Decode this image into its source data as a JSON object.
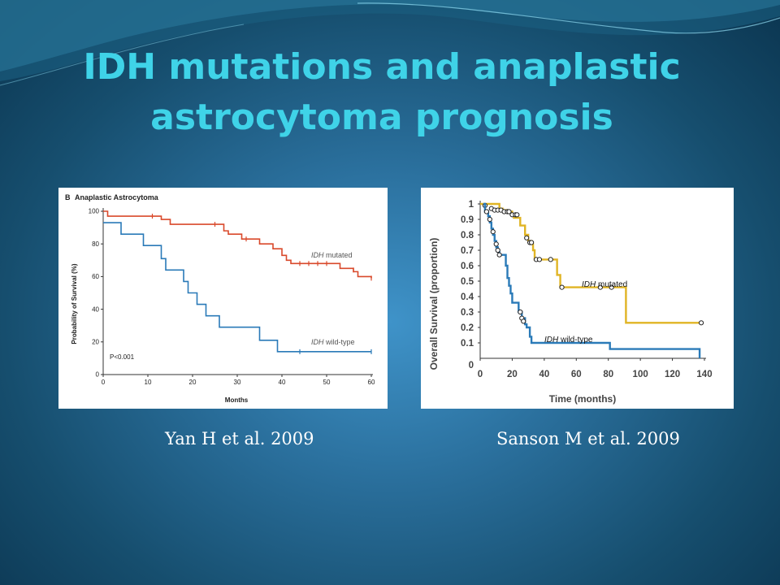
{
  "slide": {
    "title_line1": "IDH mutations and anaplastic",
    "title_line2": "astrocytoma prognosis",
    "caption_left": "Yan H et al. 2009",
    "caption_right": "Sanson M et al. 2009"
  },
  "chart_data": [
    {
      "type": "line",
      "panel_letter": "B",
      "title": "Anaplastic Astrocytoma",
      "xlabel": "Months",
      "ylabel": "Probability of Survival (%)",
      "xlim": [
        0,
        60
      ],
      "ylim": [
        0,
        100
      ],
      "xticks": [
        0,
        10,
        20,
        30,
        40,
        50,
        60
      ],
      "yticks": [
        0,
        20,
        40,
        60,
        80,
        100
      ],
      "annotation": "P<0.001",
      "series": [
        {
          "name": "IDH mutated",
          "name_italic": "IDH",
          "name_rest": " mutated",
          "color": "#d9492b",
          "steps": [
            [
              0,
              100
            ],
            [
              1,
              97
            ],
            [
              12,
              97
            ],
            [
              13,
              95
            ],
            [
              15,
              92
            ],
            [
              26,
              92
            ],
            [
              27,
              88
            ],
            [
              28,
              86
            ],
            [
              31,
              83
            ],
            [
              35,
              80
            ],
            [
              38,
              77
            ],
            [
              40,
              73
            ],
            [
              41,
              70
            ],
            [
              42,
              68
            ],
            [
              52,
              68
            ],
            [
              53,
              65
            ],
            [
              56,
              63
            ],
            [
              57,
              60
            ],
            [
              60,
              59
            ]
          ],
          "censor": [
            [
              11,
              97
            ],
            [
              25,
              92
            ],
            [
              32,
              83
            ],
            [
              44,
              68
            ],
            [
              46,
              68
            ],
            [
              48,
              68
            ],
            [
              50,
              68
            ],
            [
              56,
              64
            ],
            [
              60,
              59
            ]
          ]
        },
        {
          "name": "IDH wild-type",
          "name_italic": "IDH",
          "name_rest": " wild-type",
          "color": "#2a7ab8",
          "steps": [
            [
              0,
              93
            ],
            [
              4,
              86
            ],
            [
              9,
              79
            ],
            [
              13,
              71
            ],
            [
              14,
              64
            ],
            [
              18,
              57
            ],
            [
              19,
              50
            ],
            [
              21,
              43
            ],
            [
              23,
              36
            ],
            [
              26,
              29
            ],
            [
              35,
              21
            ],
            [
              39,
              14
            ],
            [
              60,
              14
            ]
          ],
          "censor": [
            [
              44,
              14
            ],
            [
              60,
              14
            ]
          ]
        }
      ]
    },
    {
      "type": "line",
      "xlabel": "Time (months)",
      "ylabel": "Overall Survival (proportion)",
      "xlim": [
        0,
        140
      ],
      "ylim": [
        0,
        1.0
      ],
      "xticks": [
        0,
        20,
        40,
        60,
        80,
        100,
        120,
        140
      ],
      "yticks": [
        0.1,
        0.2,
        0.3,
        0.4,
        0.5,
        0.6,
        0.7,
        0.8,
        0.9,
        1.0
      ],
      "series": [
        {
          "name": "IDH mutated",
          "name_italic": "IDH",
          "name_rest": " mutated",
          "color": "#e0b424",
          "steps": [
            [
              0,
              1.0
            ],
            [
              12,
              0.97
            ],
            [
              14,
              0.96
            ],
            [
              17,
              0.95
            ],
            [
              20,
              0.93
            ],
            [
              21,
              0.91
            ],
            [
              25,
              0.86
            ],
            [
              28,
              0.8
            ],
            [
              30,
              0.76
            ],
            [
              32,
              0.74
            ],
            [
              33,
              0.7
            ],
            [
              34,
              0.64
            ],
            [
              46,
              0.64
            ],
            [
              48,
              0.54
            ],
            [
              50,
              0.46
            ],
            [
              90,
              0.46
            ],
            [
              91,
              0.23
            ],
            [
              139,
              0.23
            ]
          ],
          "censor": [
            [
              3,
              0.99
            ],
            [
              7,
              0.97
            ],
            [
              9,
              0.96
            ],
            [
              11,
              0.96
            ],
            [
              13,
              0.96
            ],
            [
              15,
              0.95
            ],
            [
              17,
              0.95
            ],
            [
              18,
              0.95
            ],
            [
              20,
              0.93
            ],
            [
              22,
              0.93
            ],
            [
              23,
              0.93
            ],
            [
              29,
              0.78
            ],
            [
              31,
              0.75
            ],
            [
              32,
              0.75
            ],
            [
              35,
              0.64
            ],
            [
              37,
              0.64
            ],
            [
              44,
              0.64
            ],
            [
              51,
              0.46
            ],
            [
              75,
              0.46
            ],
            [
              82,
              0.46
            ],
            [
              138,
              0.23
            ]
          ]
        },
        {
          "name": "IDH wild-type",
          "name_italic": "IDH",
          "name_rest": " wild-type",
          "color": "#2a7ab8",
          "steps": [
            [
              2,
              1.0
            ],
            [
              3,
              0.95
            ],
            [
              5,
              0.92
            ],
            [
              6,
              0.88
            ],
            [
              7,
              0.84
            ],
            [
              8,
              0.8
            ],
            [
              9,
              0.76
            ],
            [
              10,
              0.72
            ],
            [
              11,
              0.69
            ],
            [
              12,
              0.67
            ],
            [
              15,
              0.67
            ],
            [
              16,
              0.6
            ],
            [
              17,
              0.52
            ],
            [
              18,
              0.47
            ],
            [
              19,
              0.42
            ],
            [
              20,
              0.36
            ],
            [
              23,
              0.36
            ],
            [
              24,
              0.3
            ],
            [
              26,
              0.26
            ],
            [
              28,
              0.22
            ],
            [
              29,
              0.2
            ],
            [
              31,
              0.14
            ],
            [
              32,
              0.1
            ],
            [
              80,
              0.1
            ],
            [
              81,
              0.06
            ],
            [
              136,
              0.06
            ],
            [
              137,
              0.0
            ]
          ],
          "censor": [
            [
              4,
              0.95
            ],
            [
              6,
              0.9
            ],
            [
              8,
              0.82
            ],
            [
              10,
              0.74
            ],
            [
              11,
              0.7
            ],
            [
              12,
              0.67
            ],
            [
              25,
              0.3
            ],
            [
              26,
              0.26
            ],
            [
              27,
              0.24
            ]
          ]
        }
      ]
    }
  ]
}
